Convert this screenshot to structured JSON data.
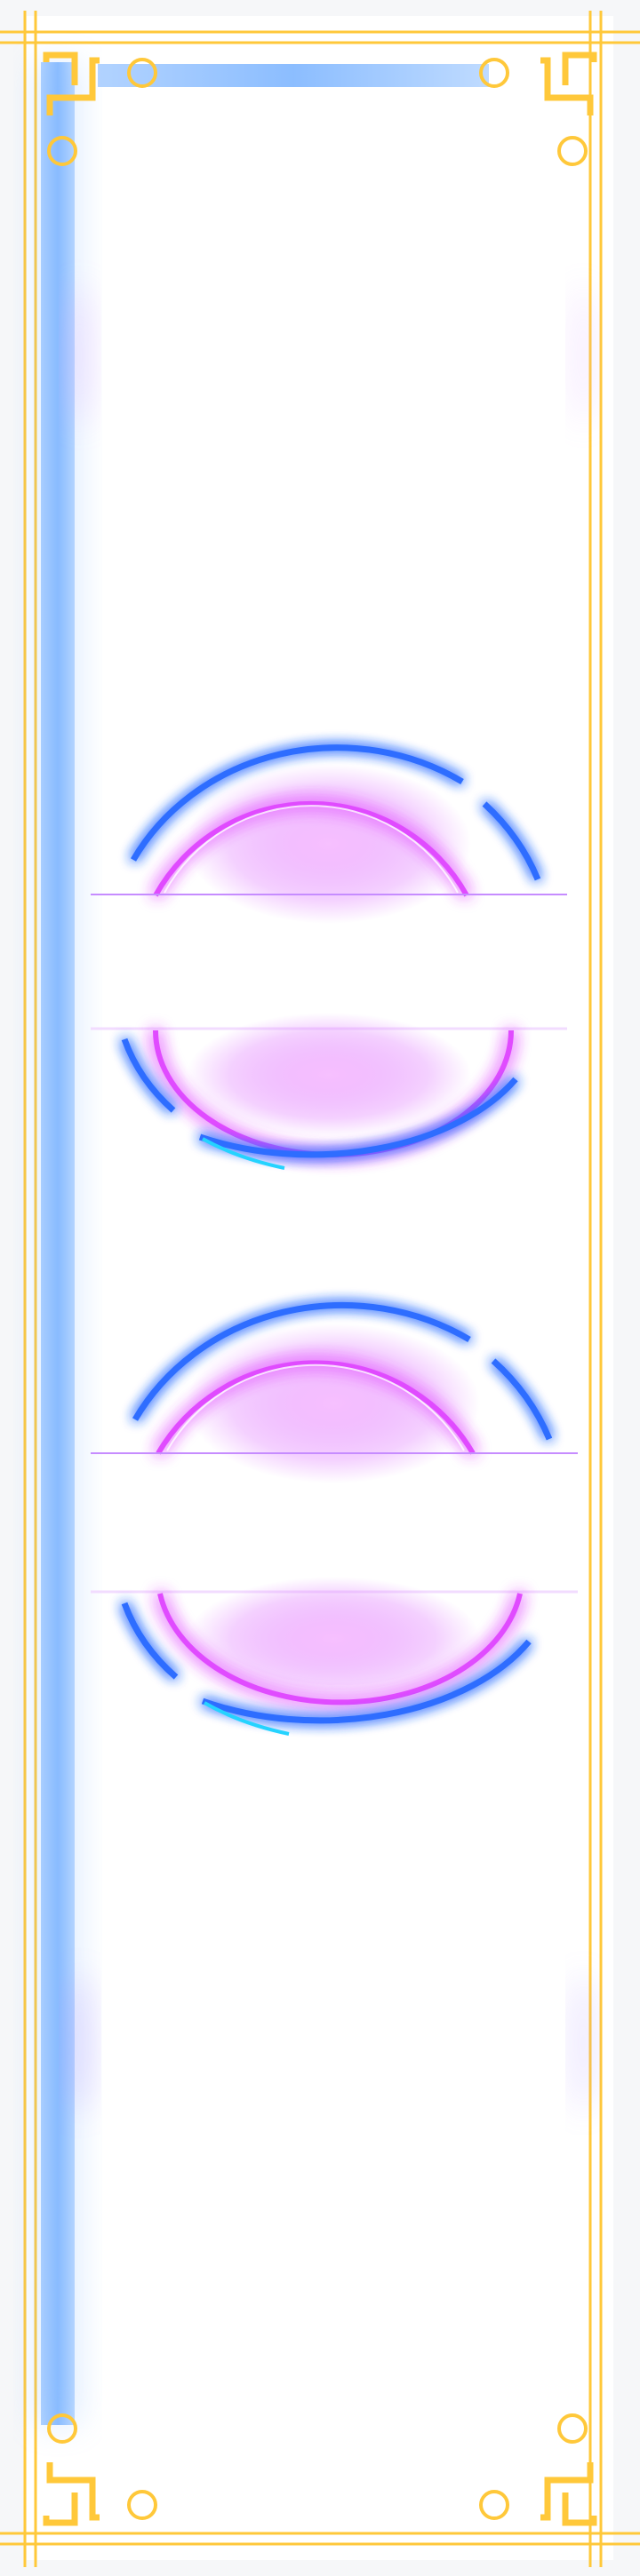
{
  "artwork": {
    "title": "",
    "colors": {
      "gold": "#ffc83a",
      "gold_light": "#ffd766",
      "blue_bar": "#7fb6ff",
      "neon_blue": "#2f6dff",
      "neon_cyan": "#25d3ff",
      "neon_purple": "#9a2cff",
      "neon_magenta": "#e04cff",
      "panel": "#ffffff",
      "background": "#f4f5f8"
    },
    "ornaments": [
      "corner-top-left",
      "corner-top-right",
      "corner-bottom-left",
      "corner-bottom-right"
    ],
    "neon_groups": 2
  }
}
